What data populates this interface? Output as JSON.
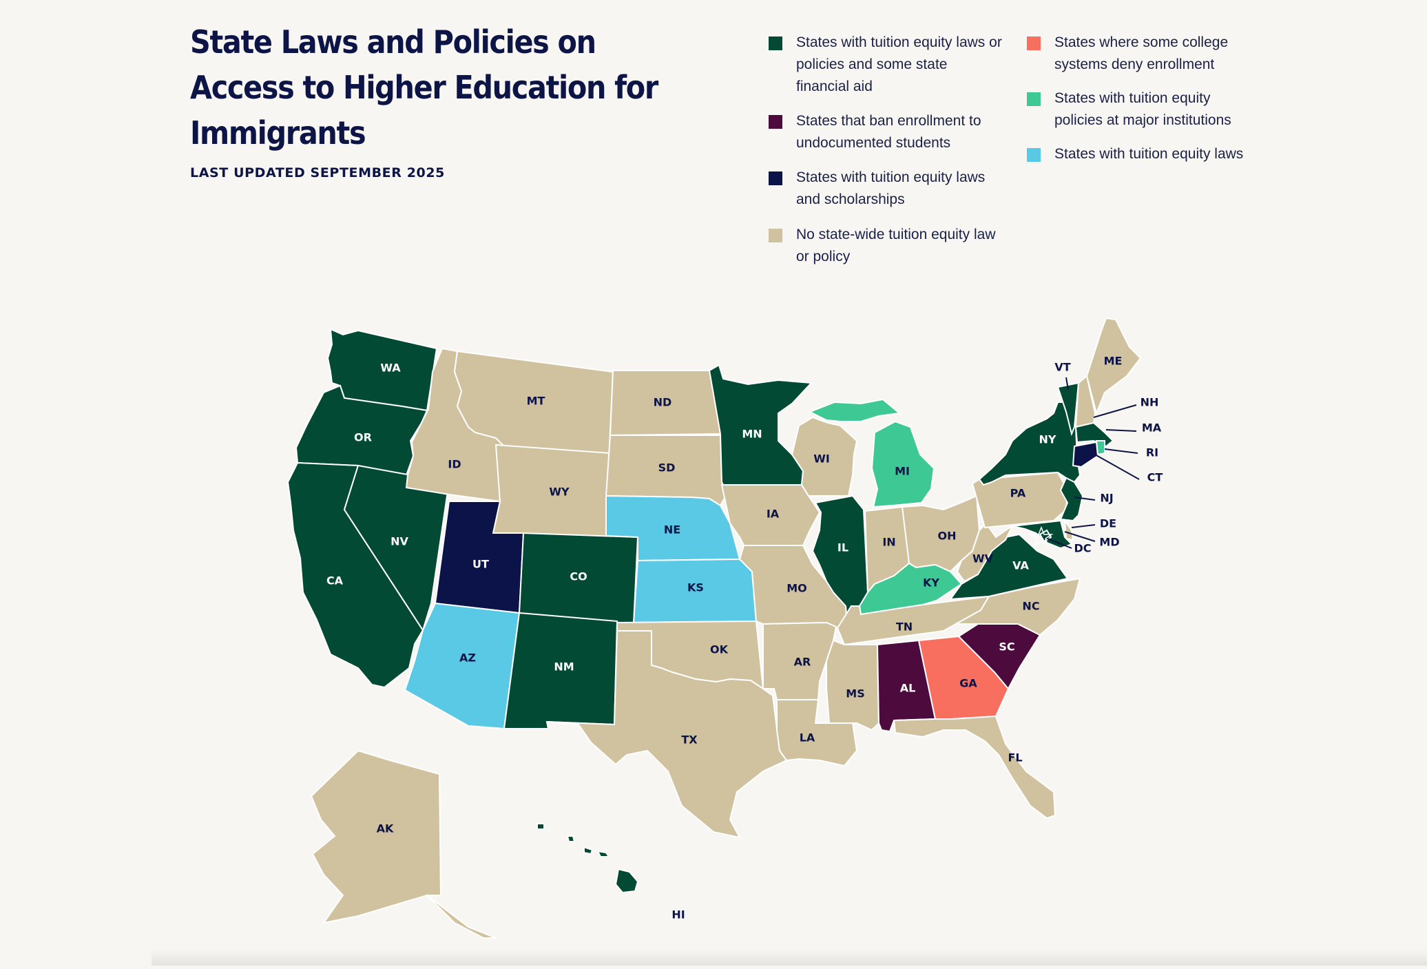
{
  "header": {
    "title": "State Laws and Policies on Access to Higher Education for Immigrants",
    "subtitle": "LAST UPDATED SEPTEMBER 2025"
  },
  "colors": {
    "dark_green": "#024a33",
    "purple": "#4d0a3d",
    "navy": "#0c1349",
    "tan": "#d1c29f",
    "coral": "#f86e5f",
    "mint": "#3ec893",
    "sky": "#5ac9e6",
    "label_dark": "#0d1446",
    "label_light": "#ffffff"
  },
  "legend": [
    {
      "key": "dark_green",
      "label": "States with tuition equity laws or policies and some state financial aid"
    },
    {
      "key": "purple",
      "label": "States that ban enrollment to undocumented students"
    },
    {
      "key": "navy",
      "label": "States with tuition equity laws and scholarships"
    },
    {
      "key": "tan",
      "label": "No state-wide tuition equity law or policy"
    },
    {
      "key": "coral",
      "label": "States where some college systems deny enrollment"
    },
    {
      "key": "mint",
      "label": "States with tuition equity policies at major institutions"
    },
    {
      "key": "sky",
      "label": "States with tuition equity laws"
    }
  ],
  "states": [
    {
      "abbr": "WA",
      "cat": "dark_green"
    },
    {
      "abbr": "OR",
      "cat": "dark_green"
    },
    {
      "abbr": "CA",
      "cat": "dark_green"
    },
    {
      "abbr": "NV",
      "cat": "dark_green"
    },
    {
      "abbr": "ID",
      "cat": "tan"
    },
    {
      "abbr": "MT",
      "cat": "tan"
    },
    {
      "abbr": "WY",
      "cat": "tan"
    },
    {
      "abbr": "UT",
      "cat": "navy"
    },
    {
      "abbr": "AZ",
      "cat": "sky"
    },
    {
      "abbr": "CO",
      "cat": "dark_green"
    },
    {
      "abbr": "NM",
      "cat": "dark_green"
    },
    {
      "abbr": "ND",
      "cat": "tan"
    },
    {
      "abbr": "SD",
      "cat": "tan"
    },
    {
      "abbr": "NE",
      "cat": "sky"
    },
    {
      "abbr": "KS",
      "cat": "sky"
    },
    {
      "abbr": "OK",
      "cat": "tan"
    },
    {
      "abbr": "TX",
      "cat": "tan"
    },
    {
      "abbr": "MN",
      "cat": "dark_green"
    },
    {
      "abbr": "IA",
      "cat": "tan"
    },
    {
      "abbr": "MO",
      "cat": "tan"
    },
    {
      "abbr": "AR",
      "cat": "tan"
    },
    {
      "abbr": "LA",
      "cat": "tan"
    },
    {
      "abbr": "WI",
      "cat": "tan"
    },
    {
      "abbr": "IL",
      "cat": "dark_green"
    },
    {
      "abbr": "MI",
      "cat": "mint"
    },
    {
      "abbr": "IN",
      "cat": "tan"
    },
    {
      "abbr": "OH",
      "cat": "tan"
    },
    {
      "abbr": "KY",
      "cat": "mint"
    },
    {
      "abbr": "TN",
      "cat": "tan"
    },
    {
      "abbr": "MS",
      "cat": "tan"
    },
    {
      "abbr": "AL",
      "cat": "purple"
    },
    {
      "abbr": "GA",
      "cat": "coral"
    },
    {
      "abbr": "FL",
      "cat": "tan"
    },
    {
      "abbr": "SC",
      "cat": "purple"
    },
    {
      "abbr": "NC",
      "cat": "tan"
    },
    {
      "abbr": "VA",
      "cat": "dark_green"
    },
    {
      "abbr": "WV",
      "cat": "tan"
    },
    {
      "abbr": "PA",
      "cat": "tan"
    },
    {
      "abbr": "NY",
      "cat": "dark_green"
    },
    {
      "abbr": "VT",
      "cat": "dark_green"
    },
    {
      "abbr": "NH",
      "cat": "tan"
    },
    {
      "abbr": "ME",
      "cat": "tan"
    },
    {
      "abbr": "MA",
      "cat": "dark_green"
    },
    {
      "abbr": "RI",
      "cat": "mint"
    },
    {
      "abbr": "CT",
      "cat": "navy"
    },
    {
      "abbr": "NJ",
      "cat": "dark_green"
    },
    {
      "abbr": "DE",
      "cat": "tan"
    },
    {
      "abbr": "MD",
      "cat": "dark_green"
    },
    {
      "abbr": "DC",
      "cat": "dark_green"
    },
    {
      "abbr": "AK",
      "cat": "tan"
    },
    {
      "abbr": "HI",
      "cat": "dark_green"
    }
  ]
}
